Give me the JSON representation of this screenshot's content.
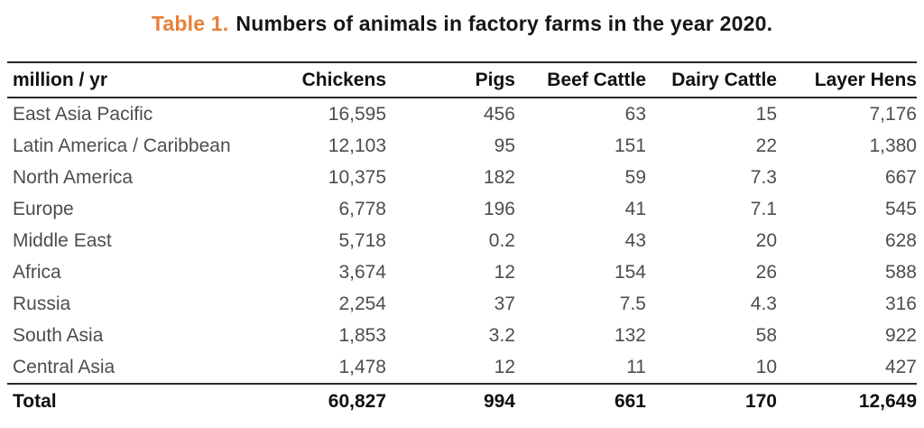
{
  "title": {
    "label": "Table 1.",
    "text": "Numbers of animals in factory farms in the year 2020.",
    "accent_color": "#E87E3A"
  },
  "table": {
    "columns": [
      "million / yr",
      "Chickens",
      "Pigs",
      "Beef Cattle",
      "Dairy Cattle",
      "Layer Hens"
    ],
    "rows": [
      {
        "region": "East Asia Pacific",
        "values": [
          "16,595",
          "456",
          "63",
          "15",
          "7,176"
        ]
      },
      {
        "region": "Latin America / Caribbean",
        "values": [
          "12,103",
          "95",
          "151",
          "22",
          "1,380"
        ]
      },
      {
        "region": "North America",
        "values": [
          "10,375",
          "182",
          "59",
          "7.3",
          "667"
        ]
      },
      {
        "region": "Europe",
        "values": [
          "6,778",
          "196",
          "41",
          "7.1",
          "545"
        ]
      },
      {
        "region": "Middle East",
        "values": [
          "5,718",
          "0.2",
          "43",
          "20",
          "628"
        ]
      },
      {
        "region": "Africa",
        "values": [
          "3,674",
          "12",
          "154",
          "26",
          "588"
        ]
      },
      {
        "region": "Russia",
        "values": [
          "2,254",
          "37",
          "7.5",
          "4.3",
          "316"
        ]
      },
      {
        "region": "South Asia",
        "values": [
          "1,853",
          "3.2",
          "132",
          "58",
          "922"
        ]
      },
      {
        "region": "Central Asia",
        "values": [
          "1,478",
          "12",
          "11",
          "10",
          "427"
        ]
      }
    ],
    "total": {
      "region": "Total",
      "values": [
        "60,827",
        "994",
        "661",
        "170",
        "12,649"
      ]
    }
  },
  "chart_data": {
    "type": "table",
    "title": "Table 1. Numbers of animals in factory farms in the year 2020.",
    "unit": "million / yr",
    "columns": [
      "Chickens",
      "Pigs",
      "Beef Cattle",
      "Dairy Cattle",
      "Layer Hens"
    ],
    "rows": [
      {
        "region": "East Asia Pacific",
        "values": [
          16595,
          456,
          63,
          15,
          7176
        ]
      },
      {
        "region": "Latin America / Caribbean",
        "values": [
          12103,
          95,
          151,
          22,
          1380
        ]
      },
      {
        "region": "North America",
        "values": [
          10375,
          182,
          59,
          7.3,
          667
        ]
      },
      {
        "region": "Europe",
        "values": [
          6778,
          196,
          41,
          7.1,
          545
        ]
      },
      {
        "region": "Middle East",
        "values": [
          5718,
          0.2,
          43,
          20,
          628
        ]
      },
      {
        "region": "Africa",
        "values": [
          3674,
          12,
          154,
          26,
          588
        ]
      },
      {
        "region": "Russia",
        "values": [
          2254,
          37,
          7.5,
          4.3,
          316
        ]
      },
      {
        "region": "South Asia",
        "values": [
          1853,
          3.2,
          132,
          58,
          922
        ]
      },
      {
        "region": "Central Asia",
        "values": [
          1478,
          12,
          11,
          10,
          427
        ]
      }
    ],
    "total": {
      "region": "Total",
      "values": [
        60827,
        994,
        661,
        170,
        12649
      ]
    }
  }
}
